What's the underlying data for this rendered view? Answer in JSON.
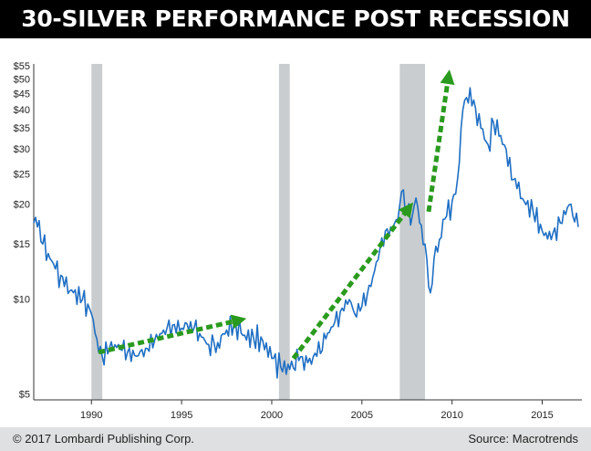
{
  "title": "30-SILVER PERFORMANCE POST RECESSION",
  "footer": {
    "copyright": "© 2017 Lombardi Publishing Corp.",
    "source": "Source: Macrotrends"
  },
  "colors": {
    "line": "#1f6fc4",
    "arrow": "#2a9a1e",
    "recession": "#c9cdcf",
    "title_bg": "#000000",
    "footer_bg": "#dfe0e1"
  },
  "chart_data": {
    "type": "line",
    "scale": "log",
    "xlim": [
      1986.8,
      2017.2
    ],
    "ylim": [
      4.8,
      56
    ],
    "grid": false,
    "yticks": [
      {
        "v": 55,
        "label": "$55"
      },
      {
        "v": 50,
        "label": "$50"
      },
      {
        "v": 45,
        "label": "$45"
      },
      {
        "v": 40,
        "label": "$40"
      },
      {
        "v": 35,
        "label": "$35"
      },
      {
        "v": 30,
        "label": "$30"
      },
      {
        "v": 25,
        "label": "$25"
      },
      {
        "v": 20,
        "label": "$20"
      },
      {
        "v": 15,
        "label": "$15"
      },
      {
        "v": 10,
        "label": "$10"
      },
      {
        "v": 5,
        "label": "$5"
      }
    ],
    "xticks": [
      {
        "v": 1990,
        "label": "1990"
      },
      {
        "v": 1995,
        "label": "1995"
      },
      {
        "v": 2000,
        "label": "2000"
      },
      {
        "v": 2005,
        "label": "2005"
      },
      {
        "v": 2010,
        "label": "2010"
      },
      {
        "v": 2015,
        "label": "2015"
      }
    ],
    "recessions": [
      [
        1990.0,
        1990.6
      ],
      [
        2000.4,
        2001.0
      ],
      [
        2007.1,
        2008.5
      ]
    ],
    "series": [
      {
        "x": [
          1986.8,
          1987.0,
          1987.3,
          1987.6,
          1988.0,
          1988.5,
          1989.0,
          1989.5,
          1990.0,
          1990.3,
          1990.6,
          1991.0,
          1991.5,
          1992.0,
          1992.5,
          1993.0,
          1993.5,
          1994.0,
          1994.5,
          1995.0,
          1995.5,
          1996.0,
          1996.5,
          1997.0,
          1997.5,
          1998.0,
          1998.5,
          1999.0,
          1999.5,
          2000.0,
          2000.5,
          2001.0,
          2001.5,
          2002.0,
          2002.5,
          2003.0,
          2003.5,
          2004.0,
          2004.3,
          2004.6,
          2005.0,
          2005.5,
          2006.0,
          2006.3,
          2006.6,
          2007.0,
          2007.2,
          2007.5,
          2007.8,
          2008.0,
          2008.2,
          2008.5,
          2008.8,
          2009.0,
          2009.3,
          2009.6,
          2010.0,
          2010.3,
          2010.6,
          2011.0,
          2011.3,
          2011.6,
          2012.0,
          2012.3,
          2012.6,
          2013.0,
          2013.3,
          2013.6,
          2014.0,
          2014.5,
          2015.0,
          2015.5,
          2016.0,
          2016.5,
          2017.0
        ],
        "values": [
          17.5,
          17.0,
          15.0,
          14.0,
          12.5,
          11.0,
          10.5,
          10.0,
          9.0,
          7.5,
          6.6,
          7.0,
          7.2,
          6.8,
          6.6,
          7.0,
          7.4,
          8.0,
          8.3,
          8.1,
          8.5,
          7.8,
          7.2,
          7.3,
          8.0,
          8.4,
          7.7,
          7.5,
          7.4,
          6.5,
          6.1,
          6.0,
          6.4,
          6.3,
          6.6,
          7.5,
          8.5,
          9.2,
          10.0,
          9.0,
          9.5,
          11.0,
          14.5,
          16.5,
          17.0,
          18.0,
          22.0,
          19.0,
          18.5,
          21.0,
          17.5,
          15.0,
          10.5,
          13.5,
          15.5,
          18.0,
          20.5,
          24.0,
          40.0,
          47.0,
          40.5,
          35.0,
          31.0,
          36.5,
          33.0,
          30.0,
          24.0,
          22.5,
          20.5,
          19.0,
          16.5,
          15.5,
          17.5,
          20.0,
          17.0
        ]
      }
    ],
    "annotations": [
      {
        "type": "arrow",
        "from": [
          1990.4,
          6.8
        ],
        "to": [
          1998.2,
          8.6
        ]
      },
      {
        "type": "arrow",
        "from": [
          2001.2,
          6.5
        ],
        "to": [
          2007.6,
          19.5
        ]
      },
      {
        "type": "arrow",
        "from": [
          2008.7,
          19.0
        ],
        "to": [
          2009.8,
          51.0
        ]
      }
    ]
  }
}
